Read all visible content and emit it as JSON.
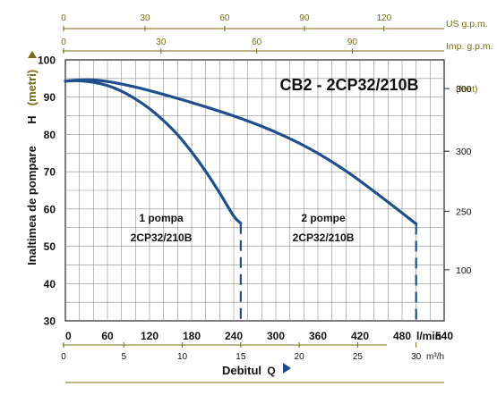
{
  "chart_data": {
    "type": "line",
    "title": "CB2 - 2CP32/210B",
    "ylabel": "Inaltimea de pompare",
    "ylabel_unit": "(metri)",
    "ylabel_symbol": "H",
    "xlabel": "Debitul",
    "xlabel_symbol": "Q",
    "ylim": [
      30,
      100
    ],
    "xlim_lmin": [
      0,
      540
    ],
    "y_ticks": [
      "30",
      "40",
      "50",
      "60",
      "70",
      "80",
      "90",
      "100"
    ],
    "x_ticks_lmin": [
      "0",
      "60",
      "120",
      "180",
      "240",
      "300",
      "360",
      "420",
      "480",
      "540"
    ],
    "x_unit_lmin": "l/min",
    "x_ticks_m3h": [
      "0",
      "5",
      "10",
      "15",
      "20",
      "25",
      "30"
    ],
    "x_unit_m3h": "m³/h",
    "x_ticks_usgpm": [
      "0",
      "30",
      "60",
      "90",
      "120"
    ],
    "x_unit_usgpm": "US g.p.m.",
    "x_ticks_impgpm": [
      "0",
      "30",
      "60",
      "90"
    ],
    "x_unit_impgpm": "Imp. g.p.m.",
    "right_axis_unit": "(feet)",
    "right_axis_ticks": [
      "300",
      "300",
      "250",
      "100"
    ],
    "grid": true,
    "series": [
      {
        "name": "1 pompa",
        "model": "2CP32/210B",
        "x": [
          0,
          20,
          40,
          60,
          80,
          100,
          120,
          140,
          160,
          180,
          200,
          220,
          240,
          250
        ],
        "y": [
          94.3,
          94.4,
          94.0,
          93.1,
          91.6,
          89.5,
          86.9,
          83.7,
          79.9,
          75.3,
          70.1,
          64.3,
          58.1,
          56.2
        ],
        "cutoff_x": 250,
        "line_style": "solid",
        "cutoff_style": "dashed"
      },
      {
        "name": "2 pompe",
        "model": "2CP32/210B",
        "x": [
          0,
          30,
          60,
          100,
          150,
          200,
          250,
          300,
          350,
          400,
          450,
          500
        ],
        "y": [
          94.3,
          94.7,
          94.2,
          92.7,
          90.2,
          87.4,
          84.3,
          80.6,
          76.0,
          70.2,
          63.3,
          56.0
        ],
        "cutoff_x": 500,
        "line_style": "solid",
        "cutoff_style": "dashed"
      }
    ],
    "colors": {
      "curve": "#1f4e8c",
      "grid": "#8c8c8c",
      "axis_label": "#7a6a12",
      "text": "#111111"
    }
  }
}
